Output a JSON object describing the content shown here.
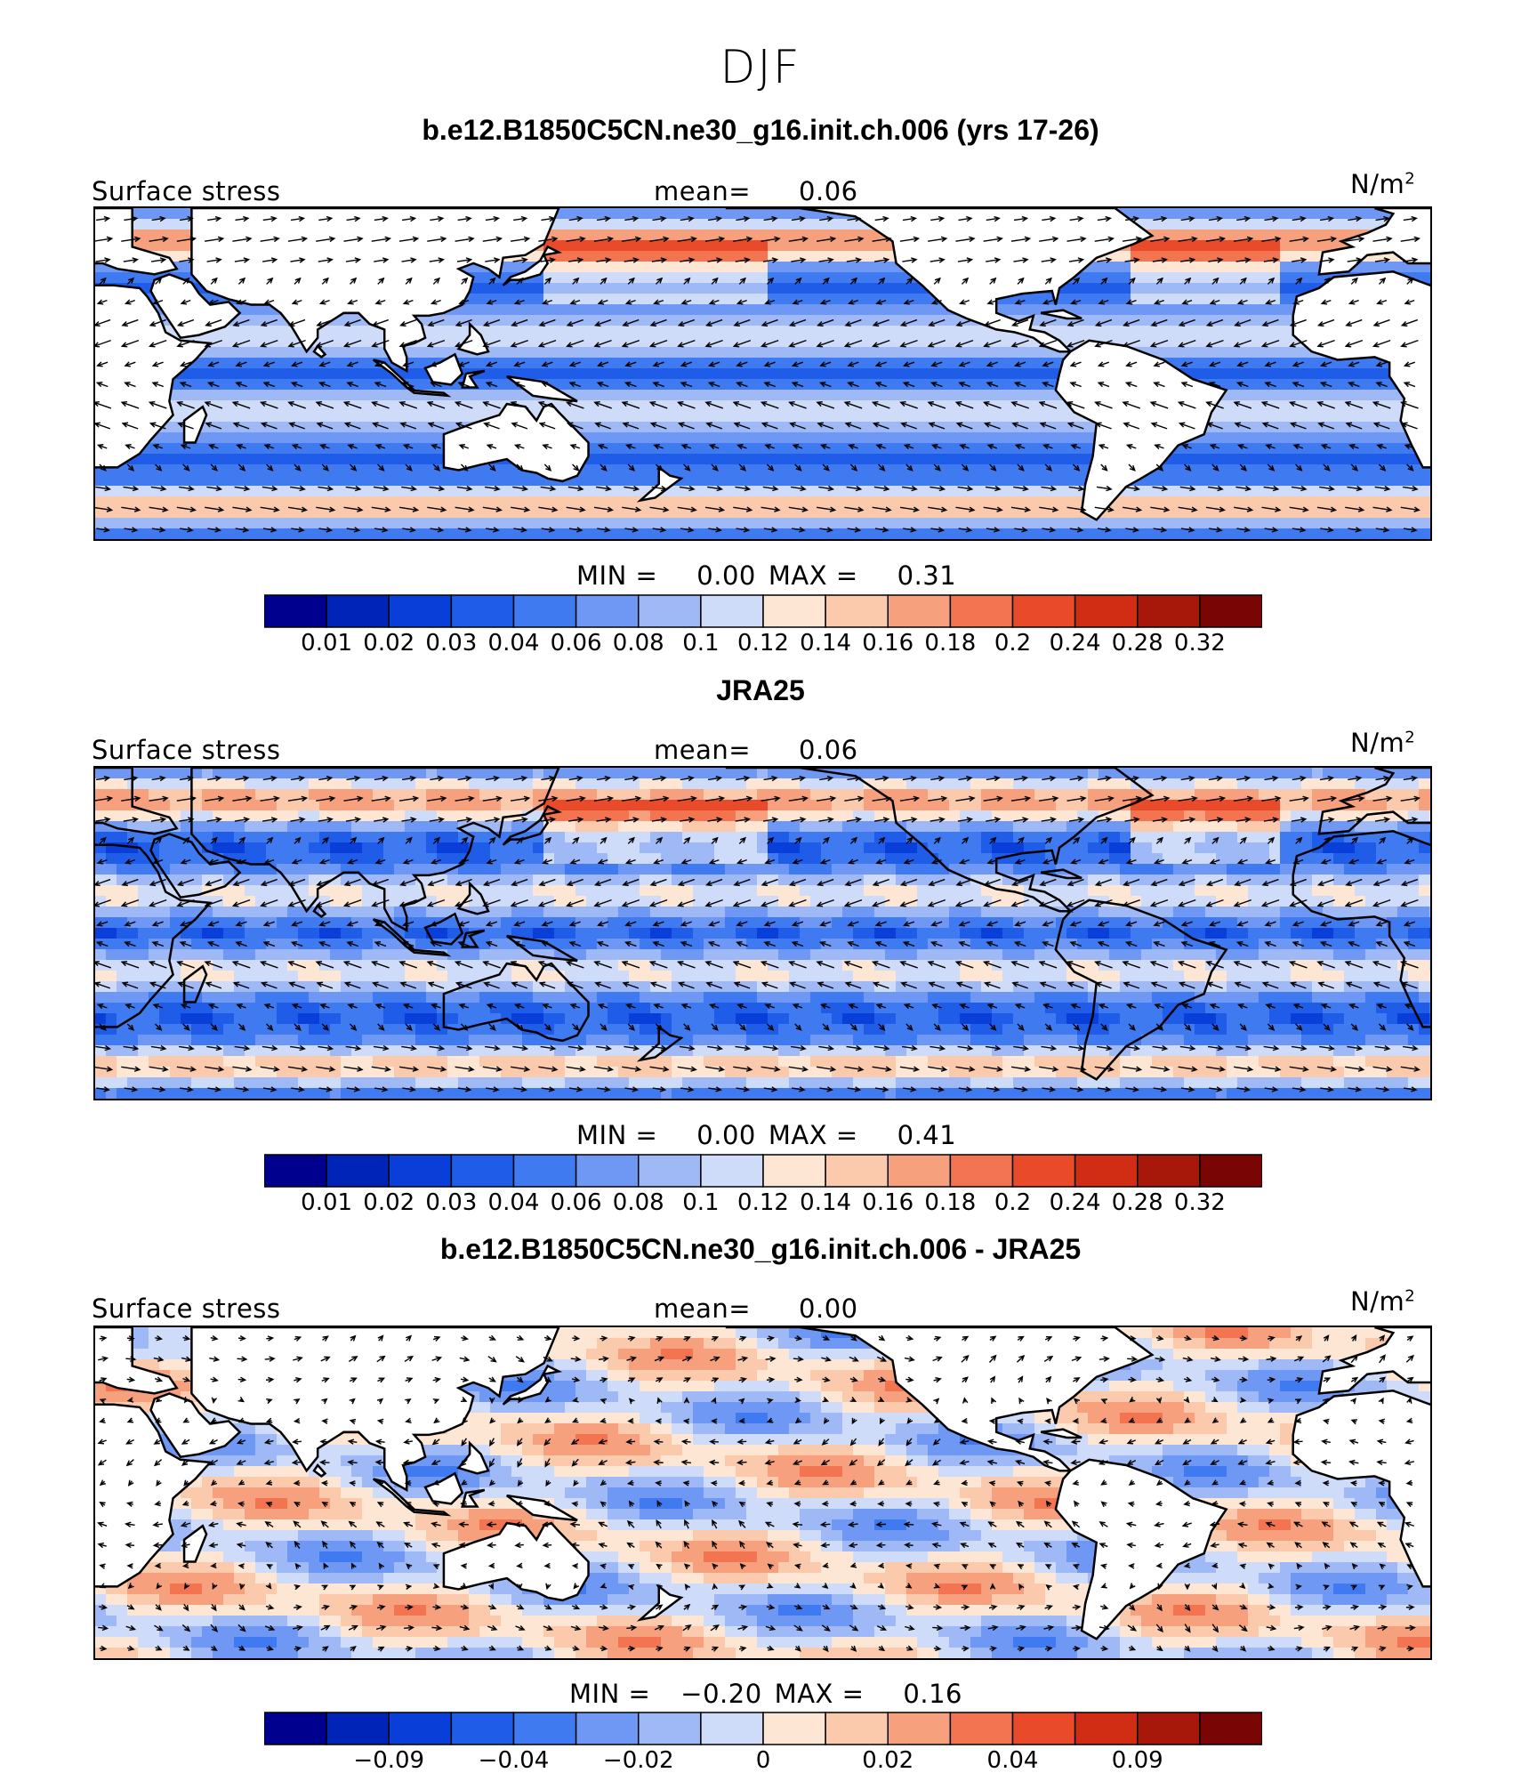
{
  "title": "DJF",
  "colors": [
    "#00008f",
    "#0024b8",
    "#0a3ed8",
    "#1f5ce8",
    "#3f7af0",
    "#6e98f4",
    "#9fb9f6",
    "#cfdcf9",
    "#fde6d4",
    "#fbc9ab",
    "#f7a07e",
    "#f27451",
    "#e94a2a",
    "#d02d14",
    "#a8180a",
    "#7a0505"
  ],
  "chart_data": [
    {
      "type": "heatmap",
      "title": "b.e12.B1850C5CN.ne30_g16.init.ch.006 (yrs 17-26)",
      "variable": "Surface stress",
      "units": "N/m",
      "units_exp": "2",
      "mean_label": "mean=",
      "mean": "0.06",
      "min_label": "MIN =",
      "min": "0.00",
      "max_label": "MAX =",
      "max": "0.31",
      "colorbar_levels": [
        "0.01",
        "0.02",
        "0.03",
        "0.04",
        "0.06",
        "0.08",
        "0.1",
        "0.12",
        "0.14",
        "0.16",
        "0.18",
        "0.2",
        "0.24",
        "0.28",
        "0.32"
      ]
    },
    {
      "type": "heatmap",
      "title": "JRA25",
      "variable": "Surface stress",
      "units": "N/m",
      "units_exp": "2",
      "mean_label": "mean=",
      "mean": "0.06",
      "min_label": "MIN =",
      "min": "0.00",
      "max_label": "MAX =",
      "max": "0.41",
      "colorbar_levels": [
        "0.01",
        "0.02",
        "0.03",
        "0.04",
        "0.06",
        "0.08",
        "0.1",
        "0.12",
        "0.14",
        "0.16",
        "0.18",
        "0.2",
        "0.24",
        "0.28",
        "0.32"
      ]
    },
    {
      "type": "heatmap",
      "title": "b.e12.B1850C5CN.ne30_g16.init.ch.006 - JRA25",
      "variable": "Surface stress",
      "units": "N/m",
      "units_exp": "2",
      "mean_label": "mean=",
      "mean": "0.00",
      "min_label": "MIN =",
      "min": "−0.20",
      "max_label": "MAX =",
      "max": "0.16",
      "colorbar_levels": [
        "−0.09",
        "−0.04",
        "−0.02",
        "0",
        "0.02",
        "0.04",
        "0.09"
      ]
    }
  ]
}
